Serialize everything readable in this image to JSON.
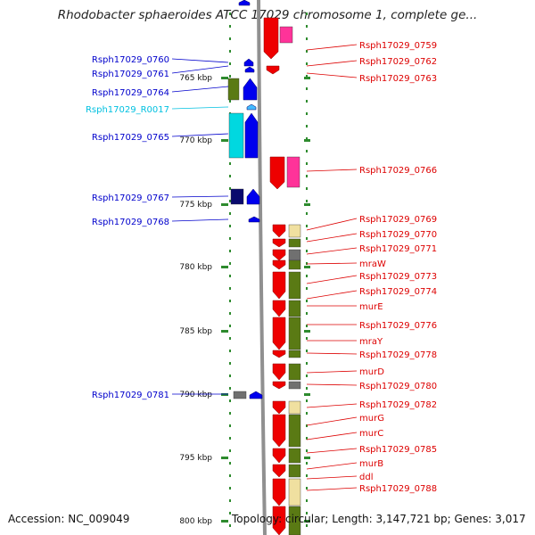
{
  "title": "Rhodobacter sphaeroides ATCC 17029 chromosome 1, complete ge...",
  "footer": {
    "accession": "Accession: NC_009049",
    "topology": "Topology: circular; Length: 3,147,721 bp; Genes: 3,017"
  },
  "colors": {
    "left_label": "#0000cc",
    "right_label": "#dd0000",
    "rna_label": "#00c0e0",
    "backbone": "#909090",
    "dots": "#2e8b2e",
    "ticks": "#2e8b2e",
    "fwd_gene": "#0000ee",
    "fwd_dark": "#0a0a6e",
    "rna": "#00d8e0",
    "rev_gene": "#ee0000",
    "rev_pink": "#ff3399",
    "cog_olive": "#5a7a14",
    "cog_cream": "#f0e0a0",
    "cog_gray": "#707070"
  },
  "kbp_ticks": [
    "765 kbp",
    "770 kbp",
    "775 kbp",
    "780 kbp",
    "785 kbp",
    "790 kbp",
    "795 kbp",
    "800 kbp"
  ],
  "left_labels": [
    "Rsph17029_0760",
    "Rsph17029_0761",
    "Rsph17029_0764",
    "Rsph17029_R0017",
    "Rsph17029_0765",
    "Rsph17029_0767",
    "Rsph17029_0768",
    "Rsph17029_0781"
  ],
  "right_labels": [
    "Rsph17029_0759",
    "Rsph17029_0762",
    "Rsph17029_0763",
    "Rsph17029_0766",
    "Rsph17029_0769",
    "Rsph17029_0770",
    "Rsph17029_0771",
    "mraW",
    "Rsph17029_0773",
    "Rsph17029_0774",
    "murE",
    "Rsph17029_0776",
    "mraY",
    "Rsph17029_0778",
    "murD",
    "Rsph17029_0780",
    "Rsph17029_0782",
    "murG",
    "murC",
    "Rsph17029_0785",
    "murB",
    "ddl",
    "Rsph17029_0788"
  ]
}
